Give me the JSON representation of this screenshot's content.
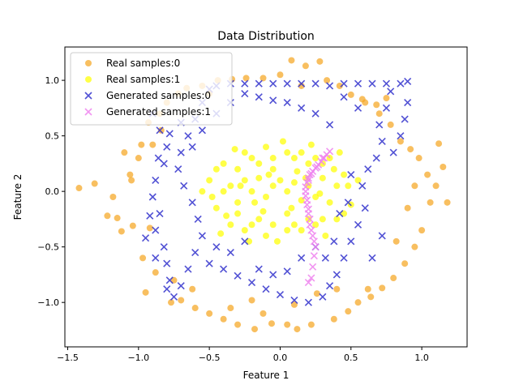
{
  "chart_data": {
    "type": "scatter",
    "title": "Data Distribution",
    "xlabel": "Feature 1",
    "ylabel": "Feature 2",
    "xlim": [
      -1.52,
      1.32
    ],
    "ylim": [
      -1.4,
      1.3
    ],
    "xticks": [
      -1.5,
      -1.0,
      -0.5,
      0.0,
      0.5,
      1.0
    ],
    "xtick_labels": [
      "−1.5",
      "−1.0",
      "−0.5",
      "0.0",
      "0.5",
      "1.0"
    ],
    "yticks": [
      -1.0,
      -0.5,
      0.0,
      0.5,
      1.0
    ],
    "ytick_labels": [
      "−1.0",
      "−0.5",
      "0.0",
      "0.5",
      "1.0"
    ],
    "grid": false,
    "legend": "top-left",
    "series": [
      {
        "name": "Real samples:0",
        "marker": "circle",
        "color": "#f5a623",
        "points": [
          [
            -1.42,
            0.03
          ],
          [
            -1.31,
            0.07
          ],
          [
            -1.22,
            -0.22
          ],
          [
            -1.18,
            -0.05
          ],
          [
            -1.12,
            -0.36
          ],
          [
            -1.1,
            0.35
          ],
          [
            -1.06,
            0.15
          ],
          [
            -1.04,
            -0.31
          ],
          [
            -1.0,
            0.3
          ],
          [
            -0.97,
            -0.6
          ],
          [
            -0.95,
            -0.91
          ],
          [
            -0.93,
            0.62
          ],
          [
            -0.9,
            0.42
          ],
          [
            -0.88,
            -0.73
          ],
          [
            -0.85,
            0.7
          ],
          [
            -0.8,
            0.8
          ],
          [
            -0.77,
            -1.0
          ],
          [
            -0.72,
            0.88
          ],
          [
            -0.7,
            -0.98
          ],
          [
            -0.66,
            0.93
          ],
          [
            -0.6,
            -1.05
          ],
          [
            -0.55,
            0.95
          ],
          [
            -0.5,
            -1.1
          ],
          [
            -0.44,
            1.0
          ],
          [
            -0.4,
            -1.15
          ],
          [
            -0.34,
            1.01
          ],
          [
            -0.3,
            -1.2
          ],
          [
            -0.24,
            1.02
          ],
          [
            -0.18,
            -1.24
          ],
          [
            -0.12,
            1.02
          ],
          [
            -0.06,
            -1.19
          ],
          [
            0.0,
            1.05
          ],
          [
            0.05,
            -1.2
          ],
          [
            0.08,
            1.18
          ],
          [
            0.12,
            -1.24
          ],
          [
            0.18,
            1.13
          ],
          [
            0.22,
            -1.2
          ],
          [
            0.28,
            1.17
          ],
          [
            0.33,
            1.0
          ],
          [
            0.38,
            -1.15
          ],
          [
            0.42,
            0.95
          ],
          [
            0.48,
            -1.08
          ],
          [
            0.5,
            0.87
          ],
          [
            0.55,
            -1.0
          ],
          [
            0.6,
            0.8
          ],
          [
            0.64,
            -0.95
          ],
          [
            0.7,
            0.7
          ],
          [
            0.72,
            -0.87
          ],
          [
            0.78,
            0.6
          ],
          [
            0.8,
            -0.78
          ],
          [
            0.85,
            0.45
          ],
          [
            0.88,
            -0.65
          ],
          [
            0.92,
            0.38
          ],
          [
            0.95,
            -0.5
          ],
          [
            0.98,
            0.3
          ],
          [
            1.0,
            -0.35
          ],
          [
            1.04,
            0.15
          ],
          [
            1.06,
            -0.1
          ],
          [
            1.1,
            0.05
          ],
          [
            1.12,
            0.43
          ],
          [
            1.15,
            0.22
          ],
          [
            1.18,
            -0.1
          ],
          [
            -0.98,
            0.42
          ],
          [
            -1.15,
            -0.24
          ],
          [
            -0.92,
            -0.33
          ],
          [
            0.68,
            0.78
          ],
          [
            0.75,
            0.84
          ],
          [
            0.58,
            0.83
          ],
          [
            -0.2,
            -0.98
          ],
          [
            0.26,
            -0.92
          ],
          [
            -0.35,
            -1.05
          ],
          [
            0.4,
            -0.88
          ],
          [
            -0.62,
            -0.88
          ],
          [
            0.9,
            -0.15
          ],
          [
            0.95,
            0.05
          ],
          [
            -1.05,
            0.1
          ],
          [
            -0.84,
            0.55
          ],
          [
            0.82,
            -0.45
          ],
          [
            -0.5,
            0.88
          ],
          [
            0.15,
            0.95
          ],
          [
            -0.75,
            -0.8
          ],
          [
            0.62,
            -0.88
          ],
          [
            -0.12,
            -1.1
          ],
          [
            0.1,
            -1.02
          ]
        ]
      },
      {
        "name": "Real samples:1",
        "marker": "circle",
        "color": "#ffff00",
        "points": [
          [
            -0.05,
            0.05
          ],
          [
            0.0,
            0.1
          ],
          [
            0.05,
            0.0
          ],
          [
            -0.1,
            -0.05
          ],
          [
            0.1,
            0.08
          ],
          [
            -0.15,
            0.12
          ],
          [
            0.15,
            -0.08
          ],
          [
            -0.2,
            0.0
          ],
          [
            0.2,
            0.05
          ],
          [
            -0.25,
            0.1
          ],
          [
            0.25,
            -0.05
          ],
          [
            -0.3,
            -0.1
          ],
          [
            0.3,
            0.12
          ],
          [
            -0.35,
            0.05
          ],
          [
            0.35,
            -0.1
          ],
          [
            -0.4,
            0.0
          ],
          [
            0.4,
            0.05
          ],
          [
            -0.45,
            -0.15
          ],
          [
            0.45,
            0.15
          ],
          [
            -0.5,
            0.1
          ],
          [
            0.5,
            -0.12
          ],
          [
            -0.05,
            0.3
          ],
          [
            0.05,
            0.35
          ],
          [
            -0.1,
            0.4
          ],
          [
            0.1,
            0.3
          ],
          [
            -0.15,
            0.25
          ],
          [
            0.15,
            0.35
          ],
          [
            -0.2,
            0.3
          ],
          [
            0.2,
            0.25
          ],
          [
            -0.25,
            0.35
          ],
          [
            0.25,
            0.3
          ],
          [
            -0.3,
            0.2
          ],
          [
            0.3,
            0.25
          ],
          [
            -0.05,
            -0.3
          ],
          [
            0.05,
            -0.35
          ],
          [
            -0.1,
            -0.4
          ],
          [
            0.1,
            -0.3
          ],
          [
            -0.15,
            -0.25
          ],
          [
            0.15,
            -0.35
          ],
          [
            -0.2,
            -0.3
          ],
          [
            0.2,
            -0.25
          ],
          [
            -0.25,
            -0.35
          ],
          [
            0.25,
            -0.3
          ],
          [
            -0.3,
            -0.2
          ],
          [
            0.3,
            -0.25
          ],
          [
            -0.4,
            0.25
          ],
          [
            0.4,
            -0.25
          ],
          [
            -0.35,
            -0.3
          ],
          [
            0.35,
            0.3
          ],
          [
            -0.05,
            0.2
          ],
          [
            0.05,
            -0.2
          ],
          [
            -0.12,
            -0.18
          ],
          [
            0.12,
            0.18
          ],
          [
            -0.45,
            0.2
          ],
          [
            0.45,
            -0.2
          ],
          [
            -0.02,
            -0.45
          ],
          [
            0.02,
            0.45
          ],
          [
            -0.22,
            -0.45
          ],
          [
            0.22,
            0.42
          ],
          [
            -0.38,
            -0.22
          ],
          [
            0.38,
            0.2
          ],
          [
            -0.08,
            0.15
          ],
          [
            0.08,
            -0.15
          ],
          [
            -0.28,
            0.05
          ],
          [
            0.28,
            -0.02
          ],
          [
            -0.18,
            -0.1
          ],
          [
            0.18,
            0.12
          ],
          [
            -0.48,
            -0.05
          ],
          [
            0.48,
            0.05
          ],
          [
            -0.32,
            0.38
          ],
          [
            0.32,
            -0.4
          ],
          [
            -0.42,
            -0.38
          ],
          [
            0.42,
            0.35
          ],
          [
            -0.55,
            0.0
          ],
          [
            0.55,
            0.1
          ]
        ]
      },
      {
        "name": "Generated samples:0",
        "marker": "x",
        "color": "#3333cc",
        "points": [
          [
            -0.9,
            0.7
          ],
          [
            -0.85,
            0.55
          ],
          [
            -0.8,
            0.4
          ],
          [
            -0.82,
            0.25
          ],
          [
            -0.88,
            0.1
          ],
          [
            -0.9,
            -0.05
          ],
          [
            -0.85,
            -0.2
          ],
          [
            -0.88,
            -0.35
          ],
          [
            -0.82,
            -0.5
          ],
          [
            -0.8,
            -0.65
          ],
          [
            -0.78,
            -0.8
          ],
          [
            -0.75,
            -0.95
          ],
          [
            -0.7,
            -0.85
          ],
          [
            -0.65,
            -0.7
          ],
          [
            -0.6,
            -0.55
          ],
          [
            -0.55,
            -0.4
          ],
          [
            -0.58,
            -0.25
          ],
          [
            -0.62,
            -0.1
          ],
          [
            -0.68,
            0.05
          ],
          [
            -0.72,
            0.2
          ],
          [
            -0.7,
            0.35
          ],
          [
            -0.65,
            0.5
          ],
          [
            -0.6,
            0.65
          ],
          [
            -0.55,
            0.8
          ],
          [
            -0.5,
            0.92
          ],
          [
            -0.45,
            0.95
          ],
          [
            -0.35,
            0.97
          ],
          [
            -0.25,
            0.97
          ],
          [
            -0.15,
            0.97
          ],
          [
            -0.05,
            0.97
          ],
          [
            0.05,
            0.97
          ],
          [
            0.15,
            0.97
          ],
          [
            0.25,
            0.97
          ],
          [
            0.35,
            0.95
          ],
          [
            0.45,
            0.97
          ],
          [
            0.55,
            0.97
          ],
          [
            0.65,
            0.97
          ],
          [
            0.75,
            0.97
          ],
          [
            0.85,
            0.97
          ],
          [
            0.9,
            0.99
          ],
          [
            0.78,
            0.9
          ],
          [
            0.75,
            0.75
          ],
          [
            0.7,
            0.6
          ],
          [
            0.72,
            0.45
          ],
          [
            0.68,
            0.3
          ],
          [
            0.62,
            0.2
          ],
          [
            0.58,
            0.05
          ],
          [
            0.6,
            -0.15
          ],
          [
            0.55,
            -0.3
          ],
          [
            0.5,
            -0.45
          ],
          [
            0.45,
            -0.6
          ],
          [
            0.4,
            -0.75
          ],
          [
            0.35,
            -0.85
          ],
          [
            0.3,
            -0.95
          ],
          [
            0.2,
            -1.0
          ],
          [
            0.1,
            -0.98
          ],
          [
            0.0,
            -0.93
          ],
          [
            -0.1,
            -0.88
          ],
          [
            -0.2,
            -0.82
          ],
          [
            -0.3,
            -0.76
          ],
          [
            -0.4,
            -0.7
          ],
          [
            -0.5,
            -0.65
          ],
          [
            -0.45,
            -0.5
          ],
          [
            -0.35,
            -0.55
          ],
          [
            -0.25,
            -0.45
          ],
          [
            -0.15,
            -0.7
          ],
          [
            -0.05,
            -0.75
          ],
          [
            0.05,
            -0.72
          ],
          [
            0.15,
            -0.6
          ],
          [
            0.25,
            -0.5
          ],
          [
            0.35,
            0.6
          ],
          [
            0.25,
            0.7
          ],
          [
            0.15,
            0.75
          ],
          [
            0.05,
            0.8
          ],
          [
            -0.05,
            0.82
          ],
          [
            -0.15,
            0.85
          ],
          [
            -0.25,
            0.88
          ],
          [
            -0.35,
            0.8
          ],
          [
            -0.45,
            0.7
          ],
          [
            -0.55,
            0.55
          ],
          [
            -0.62,
            0.4
          ],
          [
            -0.7,
            0.62
          ],
          [
            -0.78,
            0.52
          ],
          [
            -0.86,
            0.3
          ],
          [
            -0.92,
            -0.22
          ],
          [
            -0.95,
            -0.42
          ],
          [
            -0.88,
            -0.6
          ],
          [
            -0.8,
            -0.88
          ],
          [
            0.65,
            -0.6
          ],
          [
            0.72,
            -0.4
          ],
          [
            0.8,
            0.35
          ],
          [
            0.85,
            0.5
          ],
          [
            0.88,
            0.65
          ],
          [
            0.9,
            0.8
          ],
          [
            0.55,
            0.75
          ],
          [
            0.45,
            0.85
          ],
          [
            0.5,
            0.15
          ],
          [
            0.48,
            -0.1
          ],
          [
            0.42,
            -0.2
          ],
          [
            0.38,
            -0.45
          ],
          [
            0.32,
            -0.6
          ]
        ]
      },
      {
        "name": "Generated samples:1",
        "marker": "x",
        "color": "#ee82ee",
        "points": [
          [
            0.35,
            0.36
          ],
          [
            0.33,
            0.33
          ],
          [
            0.31,
            0.3
          ],
          [
            0.29,
            0.27
          ],
          [
            0.27,
            0.24
          ],
          [
            0.25,
            0.21
          ],
          [
            0.23,
            0.18
          ],
          [
            0.21,
            0.15
          ],
          [
            0.2,
            0.12
          ],
          [
            0.19,
            0.08
          ],
          [
            0.18,
            0.04
          ],
          [
            0.18,
            0.0
          ],
          [
            0.18,
            -0.04
          ],
          [
            0.19,
            -0.08
          ],
          [
            0.19,
            -0.12
          ],
          [
            0.2,
            -0.16
          ],
          [
            0.2,
            -0.2
          ],
          [
            0.21,
            -0.25
          ],
          [
            0.21,
            -0.3
          ],
          [
            0.22,
            -0.35
          ],
          [
            0.23,
            -0.4
          ],
          [
            0.24,
            -0.45
          ],
          [
            0.25,
            -0.5
          ],
          [
            0.24,
            -0.58
          ],
          [
            0.23,
            -0.68
          ],
          [
            0.22,
            -0.78
          ],
          [
            0.2,
            -0.82
          ],
          [
            0.3,
            0.3
          ],
          [
            0.26,
            0.22
          ],
          [
            0.22,
            0.16
          ],
          [
            0.2,
            0.1
          ]
        ]
      }
    ]
  }
}
